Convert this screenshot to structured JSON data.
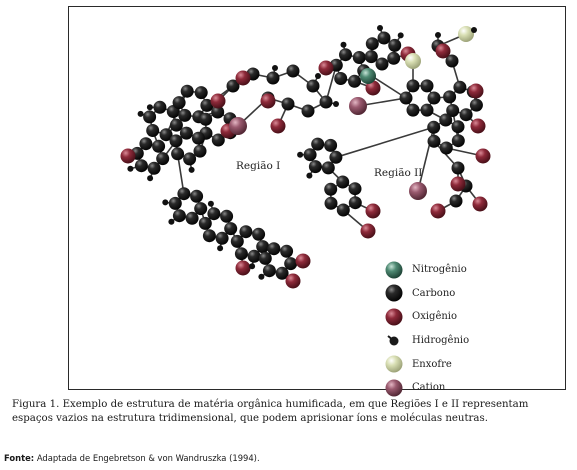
{
  "figure": {
    "region_labels": [
      "Região I",
      "Região II"
    ],
    "legend": [
      {
        "label": "Nitrogênio",
        "color": "#4f8a73",
        "icon": "atom-nitrogen-icon"
      },
      {
        "label": "Carbono",
        "color": "#151515",
        "icon": "atom-carbon-icon"
      },
      {
        "label": "Oxigênio",
        "color": "#8e2a3a",
        "icon": "atom-oxygen-icon"
      },
      {
        "label": "Hidrogênio",
        "color": "#1a1a1a",
        "icon": "atom-hydrogen-icon"
      },
      {
        "label": "Enxofre",
        "color": "#cfd5a6",
        "icon": "atom-sulfur-icon"
      },
      {
        "label": "Cation",
        "color": "#9a5a6f",
        "icon": "atom-cation-icon"
      }
    ]
  },
  "caption": {
    "label": "Figura 1.",
    "text": "Exemplo de estrutura de matéria orgânica humificada, em que Regiões I e II representam espaços vazios na estrutura tridimensional, que podem aprisionar íons e moléculas neutras."
  },
  "source": {
    "label": "Fonte:",
    "text": "Adaptada de Engebretson & von Wandruszka (1994)."
  }
}
